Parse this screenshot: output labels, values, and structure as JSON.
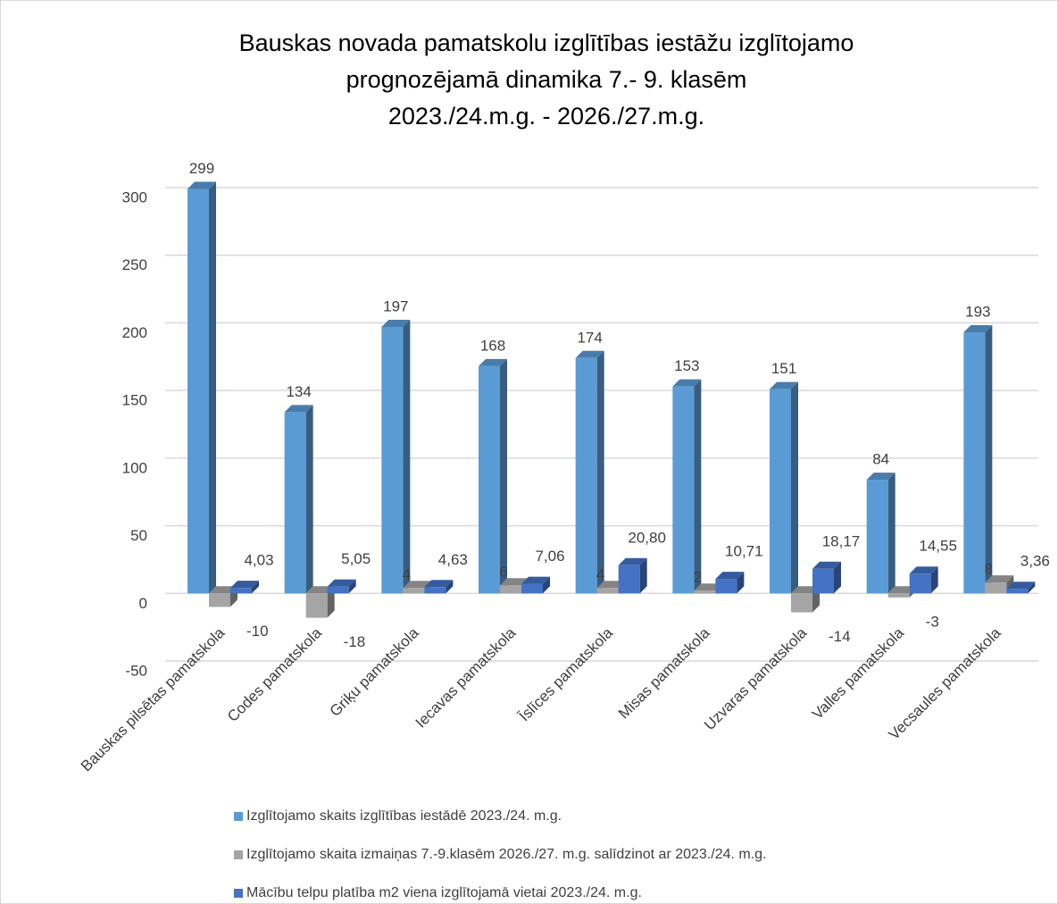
{
  "chart_data": {
    "type": "bar3d",
    "title": [
      "Bauskas novada pamatskolu izglītības iestāžu izglītojamo",
      "prognozējamā dinamika 7.- 9. klasēm",
      "2023./24.m.g. - 2026./27.m.g."
    ],
    "categories": [
      "Bauskas pilsētas pamatskola",
      "Codes  pamatskola",
      "Griķu pamatskola",
      "Iecavas pamatskola",
      "Īslīces pamatskola",
      "Misas pamatskola",
      "Uzvaras pamatskola",
      "Valles pamatskola",
      "Vecsaules pamatskola"
    ],
    "series": [
      {
        "name": "Izglītojamo  skaits izglītības iestādē 2023./24. m.g.",
        "color": "#5b9bd5",
        "values": [
          299,
          134,
          197,
          168,
          174,
          153,
          151,
          84,
          193
        ]
      },
      {
        "name": "Izglītojamo skaita izmaiņas  7.-9.klasēm 2026./27. m.g. salīdzinot ar 2023./24. m.g.",
        "color": "#a5a5a5",
        "values": [
          -10,
          -18,
          4,
          6,
          4,
          2,
          -14,
          -3,
          8
        ]
      },
      {
        "name": "Mācību telpu platība m2 viena izglītojamā vietai 2023./24. m.g.",
        "color": "#4472c4",
        "values": [
          4.03,
          5.05,
          4.63,
          7.06,
          20.8,
          10.71,
          18.17,
          14.55,
          3.36
        ],
        "value_labels": [
          "4,03",
          "5,05",
          "4,63",
          "7,06",
          "20,80",
          "10,71",
          "18,17",
          "14,55",
          "3,36"
        ]
      }
    ],
    "ylim": [
      -50,
      300
    ],
    "yticks": [
      -50,
      0,
      50,
      100,
      150,
      200,
      250,
      300
    ],
    "grid": true
  }
}
